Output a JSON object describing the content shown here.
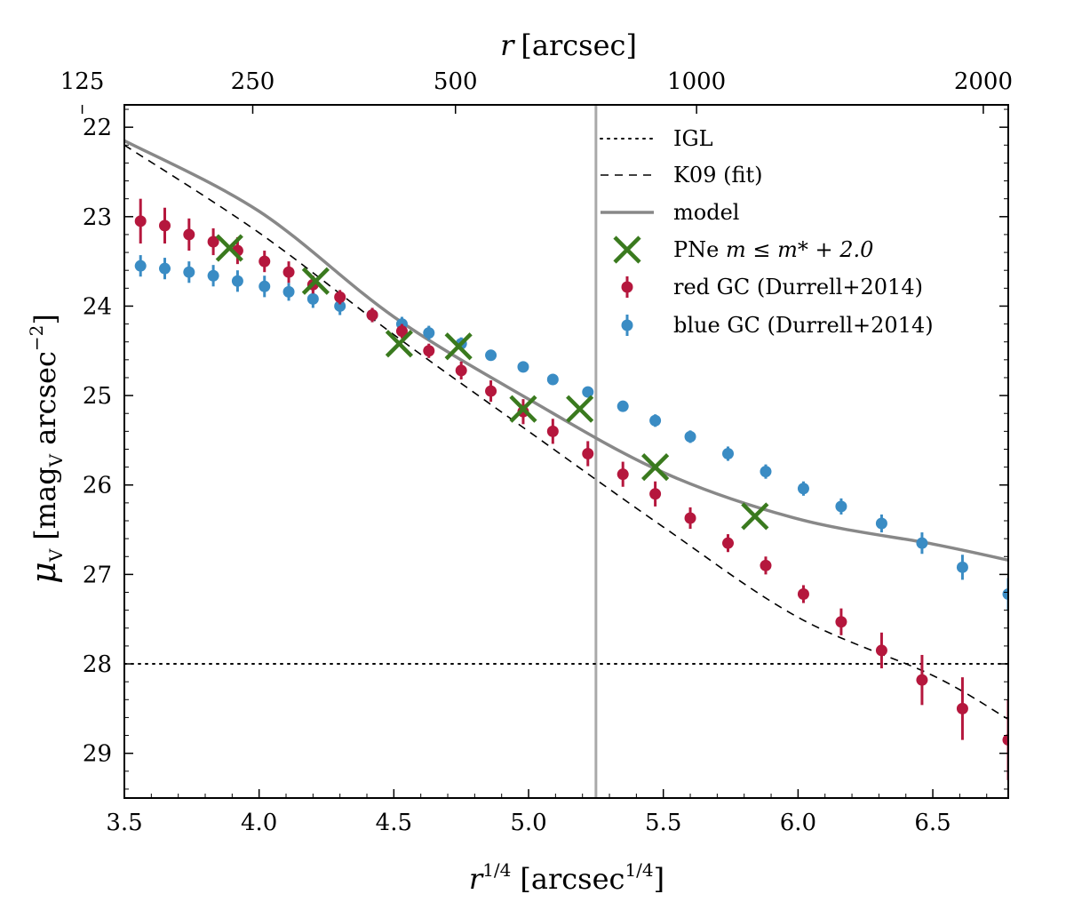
{
  "chart_data": {
    "type": "scatter",
    "x_bottom": {
      "label_base": "r",
      "label_exponent": "1/4",
      "label_units_open": "[arcsec",
      "label_units_exponent": "1/4",
      "label_units_close": "]",
      "range": [
        3.5,
        6.78
      ],
      "ticks": [
        3.5,
        4.0,
        4.5,
        5.0,
        5.5,
        6.0,
        6.5
      ],
      "tick_labels": [
        "3.5",
        "4.0",
        "4.5",
        "5.0",
        "5.5",
        "6.0",
        "6.5"
      ]
    },
    "x_top": {
      "label_base": "r",
      "label_units": "[arcsec]",
      "ticks_r_arcsec": [
        125,
        250,
        500,
        1000,
        2000
      ],
      "tick_labels": [
        "125",
        "250",
        "500",
        "1000",
        "2000"
      ]
    },
    "y": {
      "label_symbol": "μ",
      "label_symbol_sub": "V",
      "label_units_open": "[mag",
      "label_units_sub": "V",
      "label_units_word": " arcsec",
      "label_units_exponent": "−2",
      "label_units_close": "]",
      "range": [
        29.5,
        21.75
      ],
      "inverted": true,
      "ticks": [
        22,
        23,
        24,
        25,
        26,
        27,
        28,
        29
      ],
      "tick_labels": [
        "22",
        "23",
        "24",
        "25",
        "26",
        "27",
        "28",
        "29"
      ]
    },
    "vertical_line_x": 5.25,
    "series": [
      {
        "name": "IGL",
        "legend_label": "IGL",
        "style": "dotted",
        "color": "#000000",
        "y_constant": 28.0
      },
      {
        "name": "K09 (fit)",
        "legend_label": "K09 (fit)",
        "style": "dashed",
        "color": "#000000",
        "points": [
          [
            3.5,
            22.2
          ],
          [
            4.0,
            23.18
          ],
          [
            4.5,
            24.32
          ],
          [
            5.0,
            25.4
          ],
          [
            5.5,
            26.47
          ],
          [
            6.0,
            27.48
          ],
          [
            6.5,
            28.13
          ],
          [
            6.78,
            28.62
          ]
        ]
      },
      {
        "name": "model",
        "legend_label": "model",
        "style": "solid",
        "color": "#888888",
        "points": [
          [
            3.5,
            22.15
          ],
          [
            4.0,
            22.94
          ],
          [
            4.5,
            24.12
          ],
          [
            5.0,
            25.04
          ],
          [
            5.5,
            25.86
          ],
          [
            6.0,
            26.38
          ],
          [
            6.5,
            26.66
          ],
          [
            6.78,
            26.84
          ]
        ]
      },
      {
        "name": "PNe",
        "legend_label_prefix": "PNe ",
        "legend_label_math": "m ≤ m* + 2.0",
        "style": "cross",
        "color": "#3a7a1e",
        "points": [
          [
            3.89,
            23.35
          ],
          [
            4.21,
            23.72
          ],
          [
            4.52,
            24.42
          ],
          [
            4.74,
            24.45
          ],
          [
            4.98,
            25.15
          ],
          [
            5.19,
            25.15
          ],
          [
            5.47,
            25.8
          ],
          [
            5.84,
            26.35
          ]
        ]
      },
      {
        "name": "red GC (Durrell+2014)",
        "legend_label": "red GC (Durrell+2014)",
        "style": "errorbar",
        "color": "#b5173d",
        "points": [
          [
            3.56,
            23.05,
            0.25
          ],
          [
            3.65,
            23.1,
            0.2
          ],
          [
            3.74,
            23.2,
            0.18
          ],
          [
            3.83,
            23.28,
            0.15
          ],
          [
            3.92,
            23.38,
            0.15
          ],
          [
            4.02,
            23.5,
            0.12
          ],
          [
            4.11,
            23.62,
            0.12
          ],
          [
            4.2,
            23.76,
            0.1
          ],
          [
            4.3,
            23.9,
            0.08
          ],
          [
            4.42,
            24.1,
            0.08
          ],
          [
            4.53,
            24.28,
            0.08
          ],
          [
            4.63,
            24.5,
            0.08
          ],
          [
            4.75,
            24.72,
            0.1
          ],
          [
            4.86,
            24.95,
            0.12
          ],
          [
            4.98,
            25.18,
            0.14
          ],
          [
            5.09,
            25.4,
            0.14
          ],
          [
            5.22,
            25.65,
            0.14
          ],
          [
            5.35,
            25.88,
            0.14
          ],
          [
            5.47,
            26.1,
            0.14
          ],
          [
            5.6,
            26.37,
            0.12
          ],
          [
            5.74,
            26.65,
            0.1
          ],
          [
            5.88,
            26.9,
            0.1
          ],
          [
            6.02,
            27.22,
            0.1
          ],
          [
            6.16,
            27.53,
            0.15
          ],
          [
            6.31,
            27.85,
            0.2
          ],
          [
            6.46,
            28.18,
            0.28
          ],
          [
            6.61,
            28.5,
            0.35
          ],
          [
            6.78,
            28.85,
            0.45
          ]
        ]
      },
      {
        "name": "blue GC (Durrell+2014)",
        "legend_label": "blue GC (Durrell+2014)",
        "style": "errorbar",
        "color": "#3a8cc4",
        "points": [
          [
            3.56,
            23.55,
            0.12
          ],
          [
            3.65,
            23.58,
            0.12
          ],
          [
            3.74,
            23.62,
            0.12
          ],
          [
            3.83,
            23.66,
            0.12
          ],
          [
            3.92,
            23.72,
            0.12
          ],
          [
            4.02,
            23.78,
            0.12
          ],
          [
            4.11,
            23.84,
            0.1
          ],
          [
            4.2,
            23.92,
            0.1
          ],
          [
            4.3,
            24.0,
            0.1
          ],
          [
            4.42,
            24.1,
            0.08
          ],
          [
            4.53,
            24.2,
            0.08
          ],
          [
            4.63,
            24.3,
            0.08
          ],
          [
            4.75,
            24.42,
            0.07
          ],
          [
            4.86,
            24.55,
            0.06
          ],
          [
            4.98,
            24.68,
            0.06
          ],
          [
            5.09,
            24.82,
            0.06
          ],
          [
            5.22,
            24.96,
            0.06
          ],
          [
            5.35,
            25.12,
            0.06
          ],
          [
            5.47,
            25.28,
            0.07
          ],
          [
            5.6,
            25.46,
            0.07
          ],
          [
            5.74,
            25.65,
            0.08
          ],
          [
            5.88,
            25.85,
            0.08
          ],
          [
            6.02,
            26.04,
            0.08
          ],
          [
            6.16,
            26.24,
            0.09
          ],
          [
            6.31,
            26.43,
            0.1
          ],
          [
            6.46,
            26.65,
            0.12
          ],
          [
            6.61,
            26.92,
            0.14
          ],
          [
            6.78,
            27.22,
            0.18
          ]
        ]
      }
    ]
  }
}
